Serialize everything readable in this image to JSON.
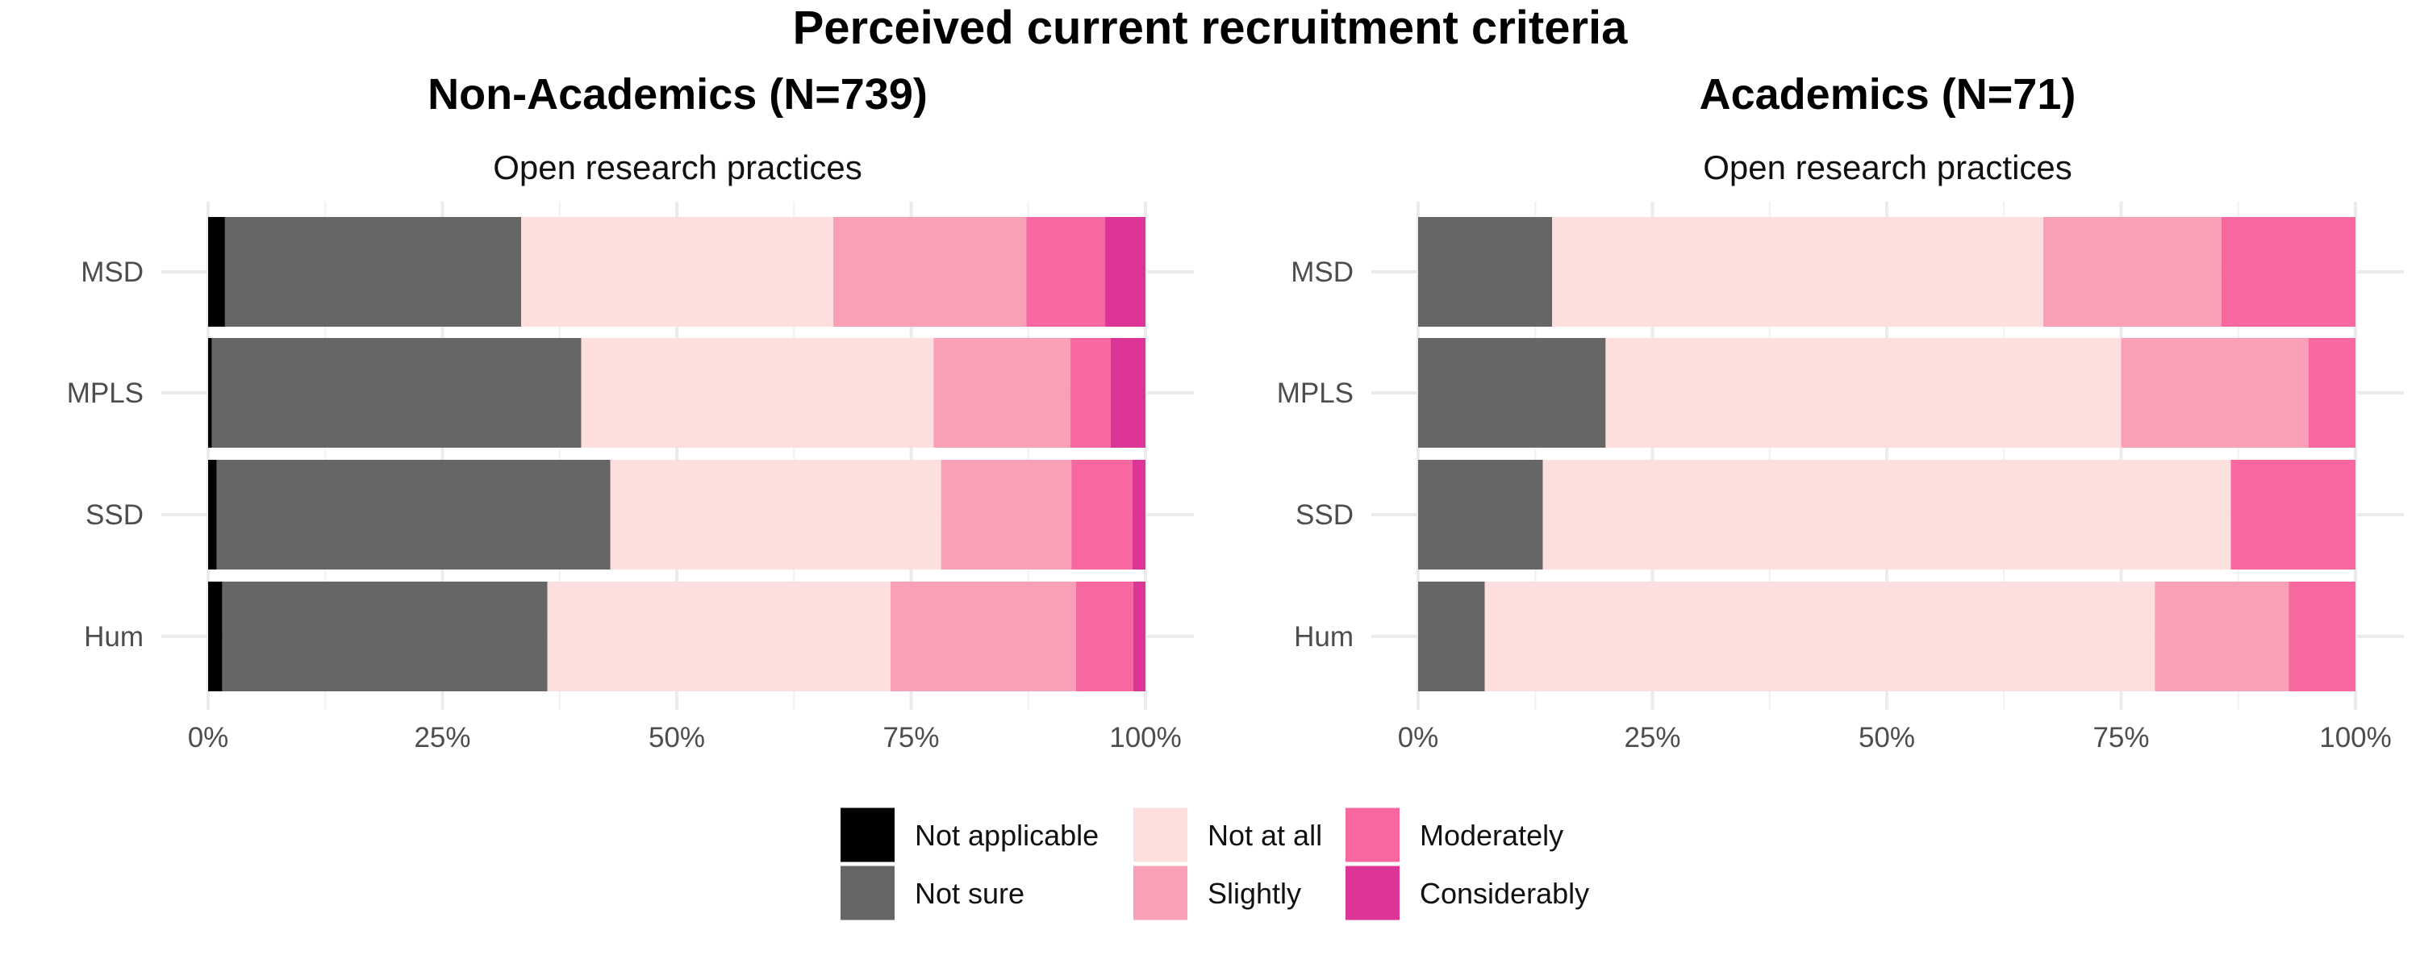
{
  "chart_data": [
    {
      "type": "bar",
      "orientation": "horizontal",
      "stacked": true,
      "normalized": true,
      "title": "Perceived current recruitment criteria",
      "panel_title": "Non-Academics (N=739)",
      "subtitle": "Open research practices",
      "categories": [
        "MSD",
        "MPLS",
        "SSD",
        "Hum"
      ],
      "x_ticks": [
        "0%",
        "25%",
        "50%",
        "75%",
        "100%"
      ],
      "xlim": [
        0,
        100
      ],
      "series": [
        {
          "name": "Not applicable",
          "color": "#000000",
          "values": [
            1.8,
            0.4,
            0.9,
            1.5
          ]
        },
        {
          "name": "Not sure",
          "color": "#666666",
          "values": [
            31.6,
            39.4,
            42.0,
            34.7
          ]
        },
        {
          "name": "Not at all",
          "color": "#fde0de",
          "values": [
            33.3,
            37.6,
            35.3,
            36.6
          ]
        },
        {
          "name": "Slightly",
          "color": "#f9a0b6",
          "values": [
            20.6,
            14.6,
            13.9,
            19.8
          ]
        },
        {
          "name": "Moderately",
          "color": "#f768a1",
          "values": [
            8.4,
            4.3,
            6.5,
            6.1
          ]
        },
        {
          "name": "Considerably",
          "color": "#dd3497",
          "values": [
            4.3,
            3.7,
            1.4,
            1.3
          ]
        }
      ]
    },
    {
      "type": "bar",
      "orientation": "horizontal",
      "stacked": true,
      "normalized": true,
      "panel_title": "Academics (N=71)",
      "subtitle": "Open research practices",
      "categories": [
        "MSD",
        "MPLS",
        "SSD",
        "Hum"
      ],
      "x_ticks": [
        "0%",
        "25%",
        "50%",
        "75%",
        "100%"
      ],
      "xlim": [
        0,
        100
      ],
      "series": [
        {
          "name": "Not applicable",
          "color": "#000000",
          "values": [
            0,
            0,
            0,
            0
          ]
        },
        {
          "name": "Not sure",
          "color": "#666666",
          "values": [
            14.3,
            20.0,
            13.3,
            7.1
          ]
        },
        {
          "name": "Not at all",
          "color": "#fde0de",
          "values": [
            52.4,
            55.0,
            73.4,
            71.5
          ]
        },
        {
          "name": "Slightly",
          "color": "#f9a0b6",
          "values": [
            19.0,
            20.0,
            0,
            14.3
          ]
        },
        {
          "name": "Moderately",
          "color": "#f768a1",
          "values": [
            14.3,
            5.0,
            13.3,
            7.1
          ]
        },
        {
          "name": "Considerably",
          "color": "#dd3497",
          "values": [
            0,
            0,
            0,
            0
          ]
        }
      ]
    }
  ],
  "legend": {
    "placement": "bottom",
    "items": [
      "Not applicable",
      "Not sure",
      "Not at all",
      "Slightly",
      "Moderately",
      "Considerably"
    ]
  }
}
